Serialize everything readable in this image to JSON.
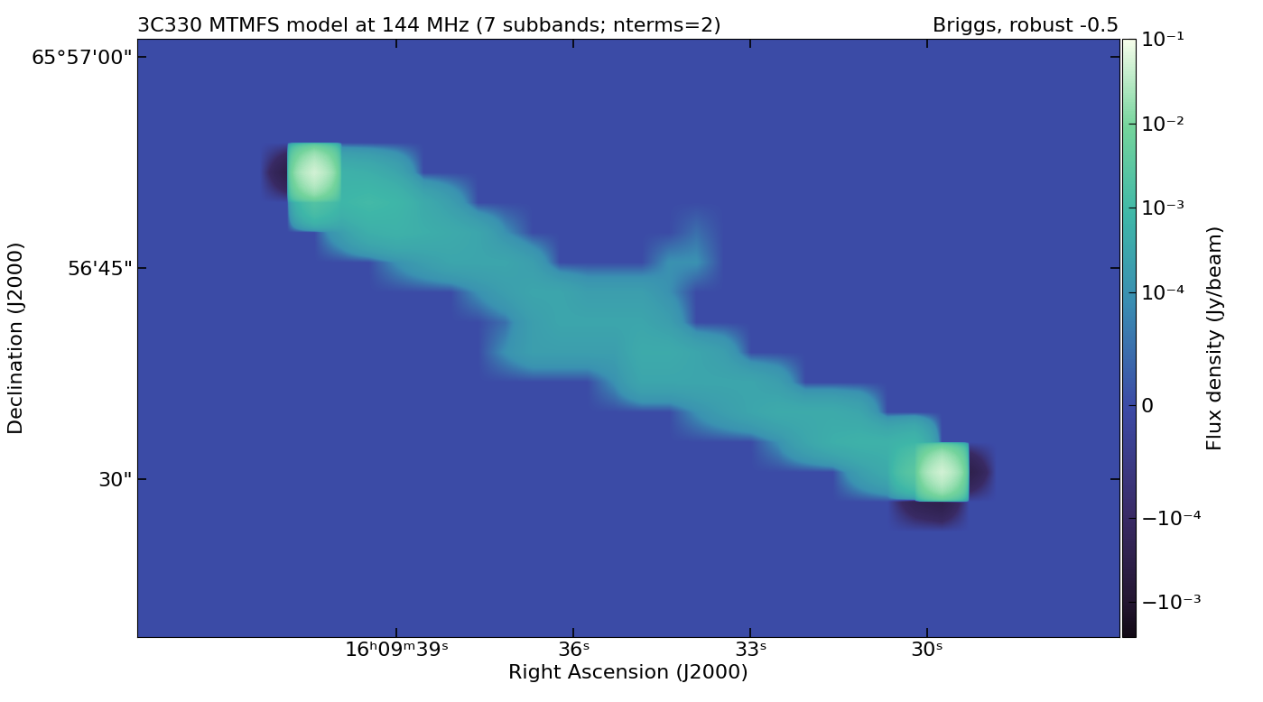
{
  "chart_data": {
    "type": "heatmap",
    "title": "3C330 MTMFS model at 144 MHz (7 subbands; nterms=2)",
    "subtitle": "Briggs, robust -0.5",
    "x_label": "Right Ascension (J2000)",
    "y_label": "Declination (J2000)",
    "xlim": [
      43.4,
      26.74
    ],
    "ylim": [
      18.8,
      61.3
    ],
    "xticks": [
      {
        "value": 39,
        "label": "16ʰ09ᵐ39ˢ"
      },
      {
        "value": 36,
        "label": "36ˢ"
      },
      {
        "value": 33,
        "label": "33ˢ"
      },
      {
        "value": 30,
        "label": "30ˢ"
      }
    ],
    "yticks": [
      {
        "value": 60,
        "label": "65°57'00\""
      },
      {
        "value": 45,
        "label": "56'45\""
      },
      {
        "value": 30,
        "label": "30\""
      }
    ],
    "log": "z",
    "colorbar_label": "Flux density (Jy/beam)",
    "colorbar_range": [
      -0.0026,
      0.1
    ],
    "colorbar_ticks": [
      {
        "value": 0.1,
        "label": "10⁻¹"
      },
      {
        "value": 0.01,
        "label": "10⁻²"
      },
      {
        "value": 0.001,
        "label": "10⁻³"
      },
      {
        "value": 0.0001,
        "label": "10⁻⁴"
      },
      0,
      {
        "value": -0.0001,
        "label": "−10⁻⁴"
      },
      {
        "value": -0.001,
        "label": "−10⁻³"
      }
    ],
    "cells": [
      [
        0,
        0,
        0,
        0,
        0,
        0,
        0,
        0,
        0,
        0,
        0,
        0,
        0,
        0,
        0,
        0,
        0,
        0,
        0,
        0,
        0,
        0,
        0,
        0,
        0,
        0,
        0,
        0,
        0,
        0,
        0,
        0,
        0,
        0,
        0,
        0
      ],
      [
        0,
        0,
        0,
        0,
        0,
        0,
        0,
        0,
        0,
        0,
        0,
        0,
        0,
        0,
        0,
        0,
        0,
        0,
        0,
        0,
        0,
        0,
        0,
        0,
        0,
        0,
        0,
        0,
        0,
        0,
        0,
        0,
        0,
        0,
        0,
        0
      ],
      [
        0,
        0,
        0,
        0,
        0,
        0,
        0,
        0,
        0,
        0,
        0,
        0,
        0,
        0,
        0,
        0,
        0,
        0,
        0,
        0,
        0,
        0,
        0,
        0,
        0,
        0,
        0,
        0,
        0,
        0,
        0,
        0,
        0,
        0,
        0,
        0
      ],
      [
        0,
        0,
        0,
        0,
        0,
        0,
        0,
        0,
        0,
        0,
        0,
        0,
        0,
        0,
        0,
        0,
        0,
        0,
        0,
        0,
        0,
        0,
        0,
        0,
        0,
        0,
        0,
        0,
        0,
        0,
        0,
        0,
        0,
        0,
        0,
        0
      ],
      [
        0,
        0,
        0,
        0,
        0,
        -0.0003,
        0.05,
        0.0006,
        0.0005,
        0.0003,
        0,
        0,
        0,
        0,
        0,
        0,
        0,
        0,
        0,
        0,
        0,
        0,
        0,
        0,
        0,
        0,
        0,
        0,
        0,
        0,
        0,
        0,
        0,
        0,
        0,
        0
      ],
      [
        0,
        0,
        0,
        0,
        0,
        0,
        0.002,
        0.0008,
        0.001,
        0.0008,
        0.0004,
        0.0002,
        0,
        0,
        0,
        0,
        0,
        0,
        0,
        0,
        0,
        0,
        0,
        0,
        0,
        0,
        0,
        0,
        0,
        0,
        0,
        0,
        0,
        0,
        0,
        0
      ],
      [
        0,
        0,
        0,
        0,
        0,
        0,
        0,
        0.0002,
        0.0005,
        0.0006,
        0.0005,
        0.0004,
        0.0003,
        0.0001,
        0,
        0,
        0,
        0,
        0,
        0,
        5e-05,
        0,
        0,
        0,
        0,
        0,
        0,
        0,
        0,
        0,
        0,
        0,
        0,
        0,
        0,
        0
      ],
      [
        0,
        0,
        0,
        0,
        0,
        0,
        0,
        0,
        0,
        0.0001,
        0.0002,
        0.0003,
        0.0003,
        0.0003,
        0.0002,
        0,
        0,
        0,
        0,
        0.0001,
        0.0001,
        0,
        0,
        0,
        0,
        0,
        0,
        0,
        0,
        0,
        0,
        0,
        0,
        0,
        0,
        0
      ],
      [
        0,
        0,
        0,
        0,
        0,
        0,
        0,
        0,
        0,
        0,
        0,
        0,
        0.0001,
        0.0002,
        0.0003,
        0.0003,
        0.0002,
        0.0002,
        0.0002,
        0.0001,
        0,
        0,
        0,
        0,
        0,
        0,
        0,
        0,
        0,
        0,
        0,
        0,
        0,
        0,
        0,
        0
      ],
      [
        0,
        0,
        0,
        0,
        0,
        0,
        0,
        0,
        0,
        0,
        0,
        0,
        0,
        5e-05,
        0.0002,
        0.0003,
        0.0003,
        0.0003,
        0.0003,
        0.0002,
        0,
        0,
        0,
        0,
        0,
        0,
        0,
        0,
        0,
        0,
        0,
        0,
        0,
        0,
        0,
        0
      ],
      [
        0,
        0,
        0,
        0,
        0,
        0,
        0,
        0,
        0,
        0,
        0,
        0,
        0,
        0.0001,
        0.0002,
        0.0002,
        0.0002,
        0.0002,
        0.0004,
        0.0004,
        0.0003,
        0.0002,
        0,
        0,
        0,
        0,
        0,
        0,
        0,
        0,
        0,
        0,
        0,
        0,
        0,
        0
      ],
      [
        0,
        0,
        0,
        0,
        0,
        0,
        0,
        0,
        0,
        0,
        0,
        0,
        0,
        0,
        0,
        0,
        0,
        0.0001,
        0.0003,
        0.0003,
        0.0003,
        0.0003,
        0.0003,
        0.0002,
        0,
        0,
        0,
        0,
        0,
        0,
        0,
        0,
        0,
        0,
        0,
        0
      ],
      [
        0,
        0,
        0,
        0,
        0,
        0,
        0,
        0,
        0,
        0,
        0,
        0,
        0,
        0,
        0,
        0,
        0,
        0,
        0,
        0,
        0.0001,
        0.0002,
        0.0003,
        0.0004,
        0.0004,
        0.0004,
        0.0003,
        0,
        0,
        0,
        0,
        0,
        0,
        0,
        0,
        0
      ],
      [
        0,
        0,
        0,
        0,
        0,
        0,
        0,
        0,
        0,
        0,
        0,
        0,
        0,
        0,
        0,
        0,
        0,
        0,
        0,
        0,
        0,
        0,
        0,
        0.0001,
        0.0003,
        0.0005,
        0.0006,
        0.0006,
        0.0008,
        0,
        0,
        0,
        0,
        0,
        0,
        0
      ],
      [
        0,
        0,
        0,
        0,
        0,
        0,
        0,
        0,
        0,
        0,
        0,
        0,
        0,
        0,
        0,
        0,
        0,
        0,
        0,
        0,
        0,
        0,
        0,
        0,
        0,
        0,
        0.0002,
        0.0004,
        0.003,
        0.05,
        -0.0003,
        0,
        0,
        0,
        0,
        0
      ],
      [
        0,
        0,
        0,
        0,
        0,
        0,
        0,
        0,
        0,
        0,
        0,
        0,
        0,
        0,
        0,
        0,
        0,
        0,
        0,
        0,
        0,
        0,
        0,
        0,
        0,
        0,
        0,
        0,
        -0.0002,
        -0.0003,
        0,
        0,
        0,
        0,
        0,
        0
      ],
      [
        0,
        0,
        0,
        0,
        0,
        0,
        0,
        0,
        0,
        0,
        0,
        0,
        0,
        0,
        0,
        0,
        0,
        0,
        0,
        0,
        0,
        0,
        0,
        0,
        0,
        0,
        0,
        0,
        0,
        0,
        0,
        0,
        0,
        0,
        0,
        0
      ],
      [
        0,
        0,
        0,
        0,
        0,
        0,
        0,
        0,
        0,
        0,
        0,
        0,
        0,
        0,
        0,
        0,
        0,
        0,
        0,
        0,
        0,
        0,
        0,
        0,
        0,
        0,
        0,
        0,
        0,
        0,
        0,
        0,
        0,
        0,
        0,
        0
      ],
      [
        0,
        0,
        0,
        0,
        0,
        0,
        0,
        0,
        0,
        0,
        0,
        0,
        0,
        0,
        0,
        0,
        0,
        0,
        0,
        0,
        0,
        0,
        0,
        0,
        0,
        0,
        0,
        0,
        0,
        0,
        0,
        0,
        0,
        0,
        0,
        0
      ],
      [
        0,
        0,
        0,
        0,
        0,
        0,
        0,
        0,
        0,
        0,
        0,
        0,
        0,
        0,
        0,
        0,
        0,
        0,
        0,
        0,
        0,
        0,
        0,
        0,
        0,
        0,
        0,
        0,
        0,
        0,
        0,
        0,
        0,
        0,
        0,
        0
      ]
    ]
  }
}
